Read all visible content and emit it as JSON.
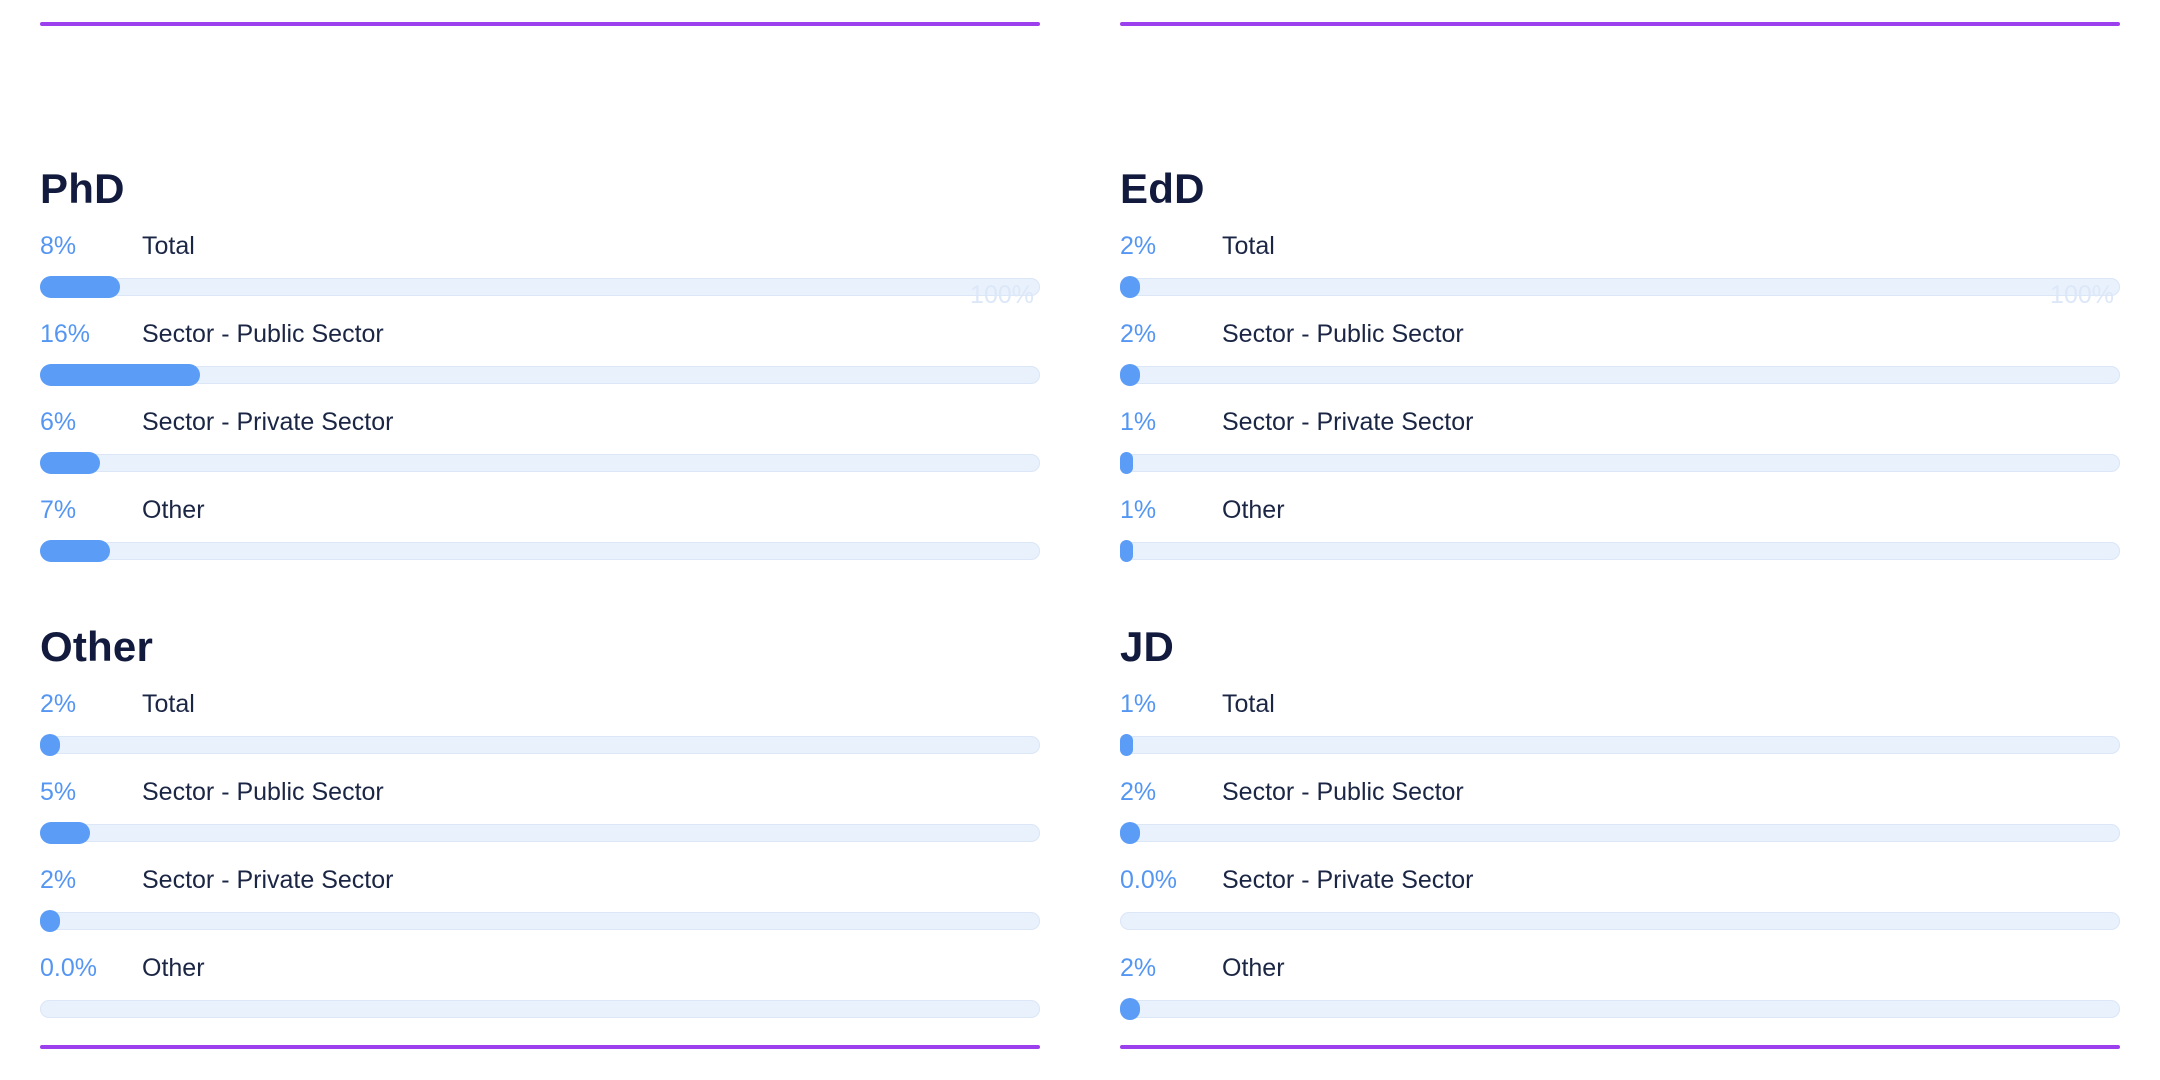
{
  "theme": {
    "background": "#ffffff",
    "divider_purple": "#9C40EE",
    "bar_fill_blue": "#5B9CF7",
    "bar_track_blue": "#E9F1FC",
    "percent_text_blue": "#5596F2",
    "heading_navy": "#121B3D",
    "label_navy": "#1B2645",
    "scale_label_faint_blue": "#DCE7F8"
  },
  "chart_data": [
    {
      "type": "bar",
      "orientation": "horizontal",
      "title": "PhD",
      "categories": [
        "Total",
        "Sector - Public Sector",
        "Sector - Private Sector",
        "Other"
      ],
      "values": [
        8,
        16,
        6,
        7
      ],
      "value_labels": [
        "8%",
        "16%",
        "6%",
        "7%"
      ],
      "xlim": [
        0,
        100
      ],
      "scale_max_label": "100%",
      "grid_position": "top-left"
    },
    {
      "type": "bar",
      "orientation": "horizontal",
      "title": "EdD",
      "categories": [
        "Total",
        "Sector - Public Sector",
        "Sector - Private Sector",
        "Other"
      ],
      "values": [
        2,
        2,
        1,
        1
      ],
      "value_labels": [
        "2%",
        "2%",
        "1%",
        "1%"
      ],
      "xlim": [
        0,
        100
      ],
      "scale_max_label": "100%",
      "grid_position": "top-right"
    },
    {
      "type": "bar",
      "orientation": "horizontal",
      "title": "Other",
      "categories": [
        "Total",
        "Sector - Public Sector",
        "Sector - Private Sector",
        "Other"
      ],
      "values": [
        2,
        5,
        2,
        0.0
      ],
      "value_labels": [
        "2%",
        "5%",
        "2%",
        "0.0%"
      ],
      "xlim": [
        0,
        100
      ],
      "grid_position": "bottom-left"
    },
    {
      "type": "bar",
      "orientation": "horizontal",
      "title": "JD",
      "categories": [
        "Total",
        "Sector - Public Sector",
        "Sector - Private Sector",
        "Other"
      ],
      "values": [
        1,
        2,
        0.0,
        2
      ],
      "value_labels": [
        "1%",
        "2%",
        "0.0%",
        "2%"
      ],
      "xlim": [
        0,
        100
      ],
      "grid_position": "bottom-right"
    }
  ]
}
